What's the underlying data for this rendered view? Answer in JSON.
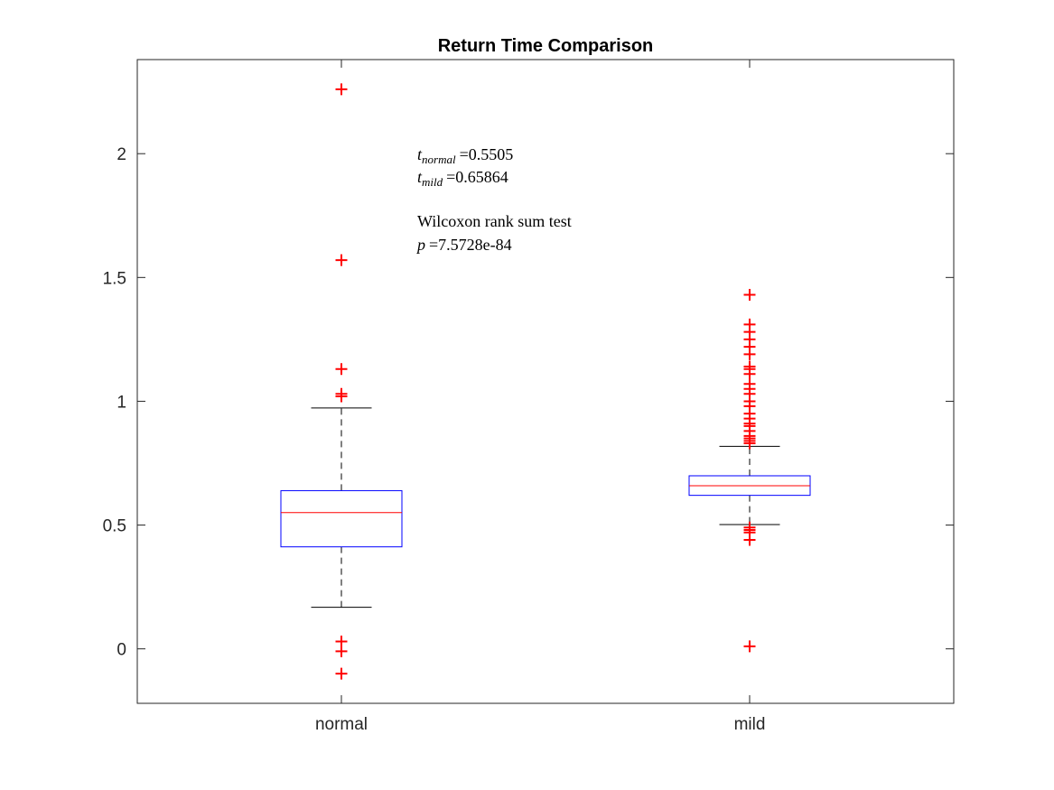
{
  "chart_data": {
    "type": "box",
    "title": "Return Time Comparison",
    "xlabel": "",
    "ylabel": "",
    "categories": [
      "normal",
      "mild"
    ],
    "ylim": [
      -0.22,
      2.38
    ],
    "yticks": [
      0,
      0.5,
      1,
      1.5,
      2
    ],
    "ytick_labels": [
      "0",
      "0.5",
      "1",
      "1.5",
      "2"
    ],
    "grid": false,
    "legend": "none",
    "colors": {
      "box": "#0000ff",
      "median": "#ff0000",
      "whisker": "#000000",
      "outlier": "#ff0000"
    },
    "boxes": [
      {
        "name": "normal",
        "q1": 0.412,
        "median": 0.5505,
        "q3": 0.639,
        "whisker_low": 0.168,
        "whisker_high": 0.973,
        "outliers": [
          2.26,
          1.57,
          1.13,
          1.03,
          1.02,
          0.03,
          -0.01,
          -0.1
        ]
      },
      {
        "name": "mild",
        "q1": 0.62,
        "median": 0.65864,
        "q3": 0.699,
        "whisker_low": 0.502,
        "whisker_high": 0.818,
        "outliers": [
          1.43,
          1.31,
          1.28,
          1.25,
          1.22,
          1.19,
          1.14,
          1.13,
          1.11,
          1.07,
          1.05,
          1.03,
          1.0,
          0.98,
          0.95,
          0.93,
          0.91,
          0.9,
          0.88,
          0.86,
          0.85,
          0.84,
          0.83,
          0.49,
          0.48,
          0.47,
          0.44,
          0.01
        ]
      }
    ],
    "annotation": {
      "t_normal_symbol": "t",
      "t_normal_sub": "normal",
      "t_normal_value": "=0.5505",
      "t_mild_symbol": "t",
      "t_mild_sub": "mild",
      "t_mild_value": "=0.65864",
      "test_name": "Wilcoxon rank sum test",
      "p_symbol": "p",
      "p_value": "=7.5728e-84"
    }
  }
}
